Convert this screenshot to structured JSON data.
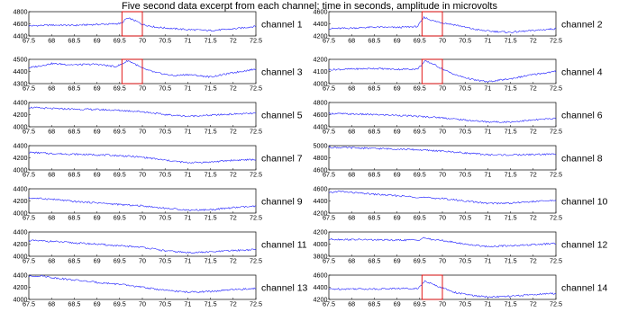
{
  "title": "Five second data excerpt from each channel: time in seconds, amplitude in microvolts",
  "chart_data": {
    "type": "line",
    "title": "Five second data excerpt from each channel: time in seconds, amplitude in microvolts",
    "x_ticks": [
      "67.5",
      "68",
      "68.5",
      "69",
      "69.5",
      "70",
      "70.5",
      "71",
      "71.5",
      "72",
      "72.5"
    ],
    "xlim": [
      67.5,
      72.5
    ],
    "highlight_window": [
      69.55,
      70.0
    ],
    "panels": [
      {
        "label": "channel 1",
        "ylim": [
          4400,
          4800
        ],
        "y_ticks": [
          "4400",
          "4600",
          "4800"
        ],
        "highlight": true,
        "points": [
          [
            67.5,
            4565
          ],
          [
            68.0,
            4580
          ],
          [
            68.5,
            4575
          ],
          [
            69.0,
            4590
          ],
          [
            69.4,
            4600
          ],
          [
            69.55,
            4610
          ],
          [
            69.65,
            4690
          ],
          [
            69.75,
            4680
          ],
          [
            69.9,
            4630
          ],
          [
            70.0,
            4590
          ],
          [
            70.3,
            4545
          ],
          [
            70.7,
            4520
          ],
          [
            71.0,
            4505
          ],
          [
            71.5,
            4490
          ],
          [
            72.0,
            4515
          ],
          [
            72.5,
            4560
          ]
        ]
      },
      {
        "label": "channel 2",
        "ylim": [
          4200,
          4600
        ],
        "y_ticks": [
          "4200",
          "4400",
          "4600"
        ],
        "highlight": true,
        "points": [
          [
            67.5,
            4320
          ],
          [
            68.0,
            4330
          ],
          [
            68.5,
            4345
          ],
          [
            69.0,
            4340
          ],
          [
            69.45,
            4355
          ],
          [
            69.6,
            4510
          ],
          [
            69.72,
            4470
          ],
          [
            69.85,
            4440
          ],
          [
            70.0,
            4420
          ],
          [
            70.3,
            4380
          ],
          [
            70.7,
            4310
          ],
          [
            71.0,
            4280
          ],
          [
            71.5,
            4260
          ],
          [
            72.0,
            4290
          ],
          [
            72.5,
            4320
          ]
        ]
      },
      {
        "label": "channel 3",
        "ylim": [
          4300,
          4500
        ],
        "y_ticks": [
          "4300",
          "4400",
          "4500"
        ],
        "highlight": true,
        "points": [
          [
            67.5,
            4430
          ],
          [
            67.8,
            4450
          ],
          [
            68.0,
            4465
          ],
          [
            68.5,
            4455
          ],
          [
            69.0,
            4460
          ],
          [
            69.4,
            4440
          ],
          [
            69.55,
            4460
          ],
          [
            69.68,
            4490
          ],
          [
            69.8,
            4470
          ],
          [
            70.0,
            4425
          ],
          [
            70.3,
            4390
          ],
          [
            70.7,
            4365
          ],
          [
            71.0,
            4375
          ],
          [
            71.5,
            4355
          ],
          [
            72.0,
            4390
          ],
          [
            72.5,
            4420
          ]
        ]
      },
      {
        "label": "channel 4",
        "ylim": [
          4000,
          4200
        ],
        "y_ticks": [
          "4000",
          "4100",
          "4200"
        ],
        "highlight": true,
        "points": [
          [
            67.5,
            4115
          ],
          [
            68.0,
            4120
          ],
          [
            68.5,
            4125
          ],
          [
            69.0,
            4118
          ],
          [
            69.45,
            4120
          ],
          [
            69.62,
            4185
          ],
          [
            69.78,
            4165
          ],
          [
            70.0,
            4120
          ],
          [
            70.3,
            4070
          ],
          [
            70.7,
            4030
          ],
          [
            71.0,
            4015
          ],
          [
            71.5,
            4040
          ],
          [
            72.0,
            4075
          ],
          [
            72.5,
            4100
          ]
        ]
      },
      {
        "label": "channel 5",
        "ylim": [
          4000,
          4400
        ],
        "y_ticks": [
          "4000",
          "4200",
          "4400"
        ],
        "highlight": false,
        "points": [
          [
            67.5,
            4320
          ],
          [
            68.0,
            4300
          ],
          [
            68.5,
            4290
          ],
          [
            69.0,
            4285
          ],
          [
            69.5,
            4270
          ],
          [
            70.0,
            4250
          ],
          [
            70.5,
            4200
          ],
          [
            71.0,
            4175
          ],
          [
            71.5,
            4190
          ],
          [
            72.0,
            4210
          ],
          [
            72.5,
            4220
          ]
        ]
      },
      {
        "label": "channel 6",
        "ylim": [
          4400,
          4800
        ],
        "y_ticks": [
          "4400",
          "4600",
          "4800"
        ],
        "highlight": false,
        "points": [
          [
            67.5,
            4620
          ],
          [
            68.0,
            4610
          ],
          [
            68.5,
            4600
          ],
          [
            69.0,
            4590
          ],
          [
            69.5,
            4570
          ],
          [
            70.0,
            4550
          ],
          [
            70.5,
            4510
          ],
          [
            71.0,
            4480
          ],
          [
            71.5,
            4480
          ],
          [
            72.0,
            4510
          ],
          [
            72.5,
            4540
          ]
        ]
      },
      {
        "label": "channel 7",
        "ylim": [
          4000,
          4400
        ],
        "y_ticks": [
          "4000",
          "4200",
          "4400"
        ],
        "highlight": false,
        "points": [
          [
            67.5,
            4290
          ],
          [
            68.0,
            4270
          ],
          [
            68.5,
            4260
          ],
          [
            69.0,
            4250
          ],
          [
            69.5,
            4235
          ],
          [
            70.0,
            4210
          ],
          [
            70.5,
            4160
          ],
          [
            71.0,
            4120
          ],
          [
            71.5,
            4130
          ],
          [
            72.0,
            4160
          ],
          [
            72.5,
            4170
          ]
        ]
      },
      {
        "label": "channel 8",
        "ylim": [
          4600,
          5000
        ],
        "y_ticks": [
          "4600",
          "4800",
          "5000"
        ],
        "highlight": false,
        "points": [
          [
            67.5,
            4975
          ],
          [
            68.0,
            4965
          ],
          [
            68.5,
            4955
          ],
          [
            69.0,
            4945
          ],
          [
            69.5,
            4930
          ],
          [
            70.0,
            4910
          ],
          [
            70.5,
            4880
          ],
          [
            71.0,
            4850
          ],
          [
            71.5,
            4845
          ],
          [
            72.0,
            4855
          ],
          [
            72.5,
            4860
          ]
        ]
      },
      {
        "label": "channel 9",
        "ylim": [
          4000,
          4400
        ],
        "y_ticks": [
          "4000",
          "4200",
          "4400"
        ],
        "highlight": false,
        "points": [
          [
            67.5,
            4250
          ],
          [
            68.0,
            4230
          ],
          [
            68.5,
            4190
          ],
          [
            69.0,
            4170
          ],
          [
            69.5,
            4140
          ],
          [
            70.0,
            4120
          ],
          [
            70.5,
            4080
          ],
          [
            71.0,
            4050
          ],
          [
            71.5,
            4055
          ],
          [
            72.0,
            4090
          ],
          [
            72.5,
            4110
          ]
        ]
      },
      {
        "label": "channel 10",
        "ylim": [
          4200,
          4600
        ],
        "y_ticks": [
          "4200",
          "4400",
          "4600"
        ],
        "highlight": false,
        "points": [
          [
            67.5,
            4530
          ],
          [
            67.7,
            4560
          ],
          [
            68.0,
            4540
          ],
          [
            68.5,
            4510
          ],
          [
            69.0,
            4485
          ],
          [
            69.5,
            4460
          ],
          [
            70.0,
            4440
          ],
          [
            70.5,
            4400
          ],
          [
            71.0,
            4360
          ],
          [
            71.5,
            4365
          ],
          [
            72.0,
            4390
          ],
          [
            72.5,
            4410
          ]
        ]
      },
      {
        "label": "channel 11",
        "ylim": [
          4000,
          4400
        ],
        "y_ticks": [
          "4000",
          "4200",
          "4400"
        ],
        "highlight": false,
        "points": [
          [
            67.5,
            4260
          ],
          [
            68.0,
            4245
          ],
          [
            68.5,
            4220
          ],
          [
            69.0,
            4200
          ],
          [
            69.5,
            4170
          ],
          [
            70.0,
            4150
          ],
          [
            70.5,
            4090
          ],
          [
            71.0,
            4060
          ],
          [
            71.5,
            4070
          ],
          [
            72.0,
            4095
          ],
          [
            72.5,
            4110
          ]
        ]
      },
      {
        "label": "channel 12",
        "ylim": [
          3800,
          4200
        ],
        "y_ticks": [
          "3800",
          "4000",
          "4200"
        ],
        "highlight": false,
        "points": [
          [
            67.5,
            4080
          ],
          [
            68.0,
            4075
          ],
          [
            68.5,
            4070
          ],
          [
            69.0,
            4065
          ],
          [
            69.5,
            4070
          ],
          [
            69.6,
            4110
          ],
          [
            69.7,
            4080
          ],
          [
            70.0,
            4060
          ],
          [
            70.5,
            4000
          ],
          [
            71.0,
            3960
          ],
          [
            71.5,
            3975
          ],
          [
            72.0,
            3990
          ],
          [
            72.5,
            4010
          ]
        ]
      },
      {
        "label": "channel 13",
        "ylim": [
          4000,
          4400
        ],
        "y_ticks": [
          "4000",
          "4200",
          "4400"
        ],
        "highlight": false,
        "points": [
          [
            67.5,
            4380
          ],
          [
            67.8,
            4390
          ],
          [
            68.0,
            4360
          ],
          [
            68.5,
            4320
          ],
          [
            69.0,
            4280
          ],
          [
            69.5,
            4250
          ],
          [
            70.0,
            4200
          ],
          [
            70.5,
            4150
          ],
          [
            71.0,
            4120
          ],
          [
            71.5,
            4130
          ],
          [
            72.0,
            4160
          ],
          [
            72.5,
            4180
          ]
        ]
      },
      {
        "label": "channel 14",
        "ylim": [
          4200,
          4600
        ],
        "y_ticks": [
          "4200",
          "4400",
          "4600"
        ],
        "highlight": true,
        "points": [
          [
            67.5,
            4370
          ],
          [
            68.0,
            4375
          ],
          [
            68.5,
            4372
          ],
          [
            69.0,
            4380
          ],
          [
            69.45,
            4380
          ],
          [
            69.62,
            4500
          ],
          [
            69.78,
            4450
          ],
          [
            70.0,
            4390
          ],
          [
            70.3,
            4310
          ],
          [
            70.7,
            4260
          ],
          [
            71.0,
            4240
          ],
          [
            71.5,
            4250
          ],
          [
            72.0,
            4280
          ],
          [
            72.5,
            4300
          ]
        ]
      }
    ]
  }
}
